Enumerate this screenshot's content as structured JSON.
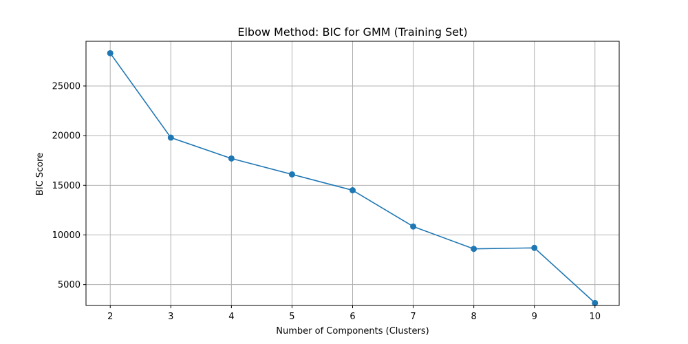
{
  "chart_data": {
    "type": "line",
    "title": "Elbow Method: BIC for GMM (Training Set)",
    "xlabel": "Number of Components (Clusters)",
    "ylabel": "BIC Score",
    "x": [
      2,
      3,
      4,
      5,
      6,
      7,
      8,
      9,
      10
    ],
    "series": [
      {
        "values": [
          28300,
          19800,
          17700,
          16100,
          14500,
          10850,
          8600,
          8700,
          3150
        ]
      }
    ],
    "xticks": [
      "2",
      "3",
      "4",
      "5",
      "6",
      "7",
      "8",
      "9",
      "10"
    ],
    "yticks": [
      5000,
      10000,
      15000,
      20000,
      25000
    ],
    "ytick_labels": [
      "5000",
      "10000",
      "15000",
      "20000",
      "25000"
    ],
    "xlim": [
      1.6,
      10.4
    ],
    "ylim": [
      2900,
      29500
    ],
    "grid": true,
    "marker": "circle",
    "line_color": "#1f77b4",
    "grid_color": "#b0b0b0"
  }
}
